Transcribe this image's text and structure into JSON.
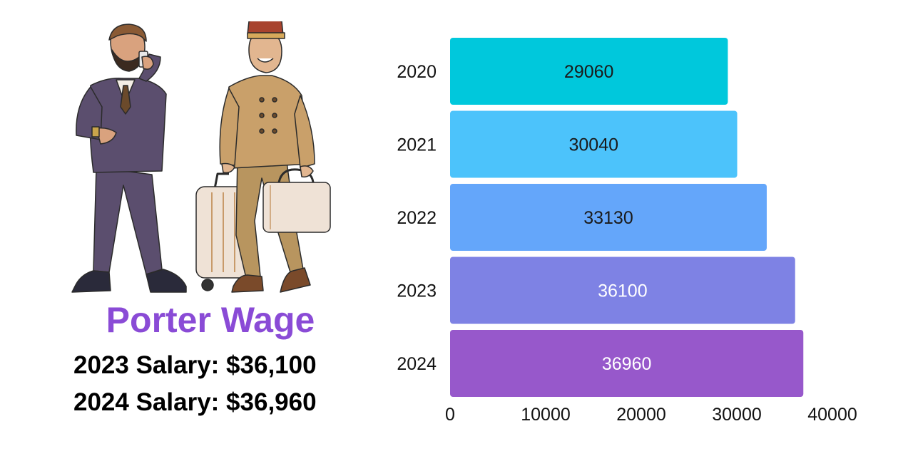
{
  "left_panel": {
    "title": "Porter Wage",
    "salary_lines": [
      "2023 Salary: $36,100",
      "2024 Salary: $36,960"
    ]
  },
  "illustration": {
    "figures": [
      "businessman-on-phone",
      "porter-with-luggage"
    ]
  },
  "chart_data": {
    "type": "bar",
    "orientation": "horizontal",
    "categories": [
      "2020",
      "2021",
      "2022",
      "2023",
      "2024"
    ],
    "values": [
      29060,
      30040,
      33130,
      36100,
      36960
    ],
    "bar_colors": [
      "#00c8dc",
      "#4cc3fb",
      "#64a6fa",
      "#7e82e4",
      "#9758cb"
    ],
    "label_colors": [
      "#1a1a1a",
      "#1a1a1a",
      "#1a1a1a",
      "#ffffff",
      "#ffffff"
    ],
    "xlim": [
      0,
      40000
    ],
    "x_ticks": [
      0,
      10000,
      20000,
      30000,
      40000
    ],
    "title": "",
    "xlabel": "",
    "ylabel": "",
    "grid": false,
    "legend": false,
    "data_labels": true
  }
}
